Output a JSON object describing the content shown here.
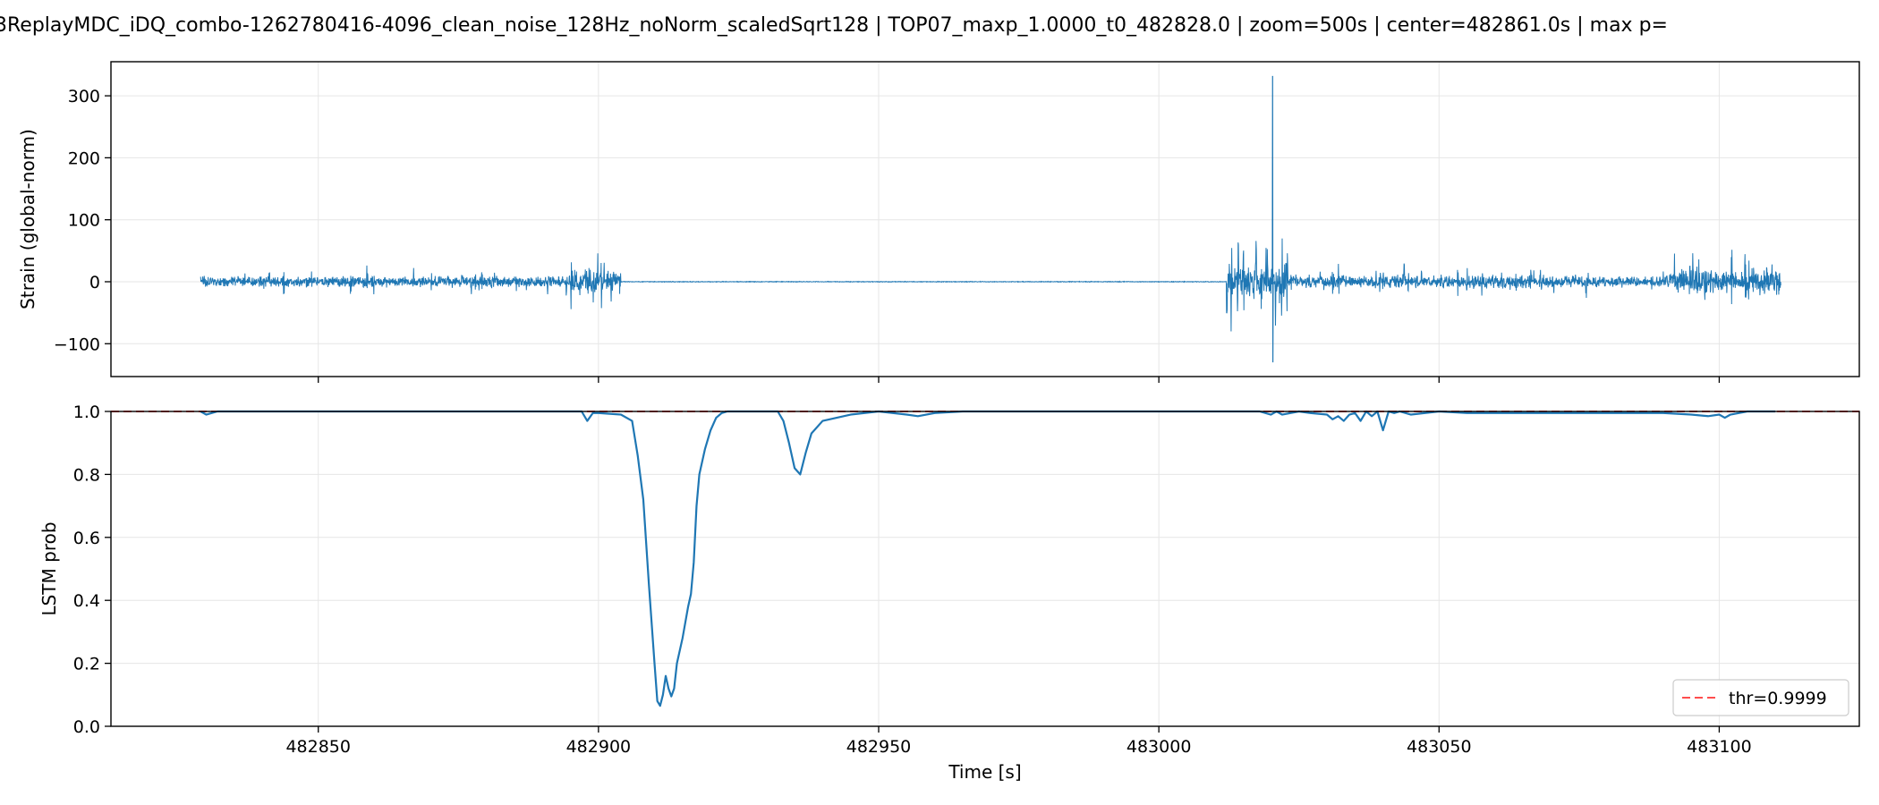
{
  "title": "3ReplayMDC_iDQ_combo-1262780416-4096_clean_noise_128Hz_noNorm_scaledSqrt128 | TOP07_maxp_1.0000_t0_482828.0 | zoom=500s | center=482861.0s | max p=",
  "colors": {
    "series": "#1f77b4",
    "threshold": "#ff4d4d",
    "grid": "#e6e6e6"
  },
  "chart_data": [
    {
      "type": "line",
      "panel": "strain",
      "ylabel": "Strain (global-norm)",
      "xlabel": "",
      "xlim": [
        482813,
        483125
      ],
      "ylim": [
        -153,
        355
      ],
      "xticks": [
        482850,
        482900,
        482950,
        483000,
        483050,
        483100
      ],
      "yticks": [
        -100,
        0,
        100,
        200,
        300
      ],
      "ytick_labels": [
        "−100",
        "0",
        "100",
        "200",
        "300"
      ],
      "grid": true,
      "segments": [
        {
          "x": [
            482829,
            482900
          ],
          "amplitude": 12,
          "spikes": 30
        },
        {
          "x": [
            482895,
            482904
          ],
          "amplitude": 28,
          "spikes": 10
        },
        {
          "x": [
            482904,
            483012
          ],
          "amplitude": 0.8,
          "spikes": 0
        },
        {
          "x": [
            483012,
            483023
          ],
          "amplitude": 42,
          "spikes": 12
        },
        {
          "x": [
            483023,
            483090
          ],
          "amplitude": 14,
          "spikes": 30
        },
        {
          "x": [
            483090,
            483111
          ],
          "amplitude": 28,
          "spikes": 14
        }
      ],
      "peaks": [
        {
          "x": 483020.3,
          "y": 332
        },
        {
          "x": 483020.3,
          "y": -130
        }
      ]
    },
    {
      "type": "line",
      "panel": "lstm",
      "ylabel": "LSTM prob",
      "xlabel": "Time [s]",
      "xlim": [
        482813,
        483125
      ],
      "ylim": [
        0.0,
        1.0
      ],
      "xticks": [
        482850,
        482900,
        482950,
        483000,
        483050,
        483100
      ],
      "xtick_labels": [
        "482850",
        "482900",
        "482950",
        "483000",
        "483050",
        "483100"
      ],
      "yticks": [
        0.0,
        0.2,
        0.4,
        0.6,
        0.8,
        1.0
      ],
      "ytick_labels": [
        "0.0",
        "0.2",
        "0.4",
        "0.6",
        "0.8",
        "1.0"
      ],
      "grid": true,
      "legend_position": "lower-right",
      "threshold": {
        "value": 0.9999,
        "label": "thr=0.9999"
      },
      "series": [
        {
          "x": [
            482829,
            482830,
            482832,
            482897,
            482898,
            482899,
            482900,
            482904,
            482906,
            482907,
            482908,
            482909,
            482910,
            482910.5,
            482911,
            482911.5,
            482912,
            482912.5,
            482913,
            482913.5,
            482914,
            482915,
            482916,
            482916.5,
            482917,
            482917.5,
            482918,
            482919,
            482920,
            482921,
            482922,
            482923,
            482932,
            482933,
            482934,
            482935,
            482936,
            482937,
            482938,
            482940,
            482945,
            482950,
            482955,
            482957,
            482960,
            482965,
            483018,
            483020,
            483021,
            483022,
            483025,
            483027,
            483030,
            483031,
            483032,
            483033,
            483034,
            483035,
            483036,
            483037,
            483038,
            483039,
            483040,
            483041,
            483042,
            483043,
            483045,
            483050,
            483055,
            483090,
            483095,
            483098,
            483100,
            483101,
            483102,
            483105,
            483110
          ],
          "y": [
            1.0,
            0.99,
            1.0,
            1.0,
            0.97,
            0.995,
            0.995,
            0.99,
            0.97,
            0.86,
            0.72,
            0.45,
            0.2,
            0.08,
            0.065,
            0.1,
            0.16,
            0.12,
            0.095,
            0.12,
            0.2,
            0.28,
            0.38,
            0.42,
            0.52,
            0.7,
            0.8,
            0.88,
            0.94,
            0.98,
            0.995,
            1.0,
            1.0,
            0.97,
            0.9,
            0.82,
            0.8,
            0.87,
            0.93,
            0.97,
            0.99,
            1.0,
            0.99,
            0.985,
            0.995,
            1.0,
            1.0,
            0.99,
            1.0,
            0.99,
            1.0,
            0.995,
            0.99,
            0.975,
            0.985,
            0.97,
            0.99,
            0.995,
            0.97,
            1.0,
            0.985,
            1.0,
            0.94,
            1.0,
            0.995,
            1.0,
            0.99,
            1.0,
            0.995,
            0.995,
            0.99,
            0.985,
            0.99,
            0.98,
            0.99,
            1.0,
            1.0
          ]
        }
      ]
    }
  ]
}
